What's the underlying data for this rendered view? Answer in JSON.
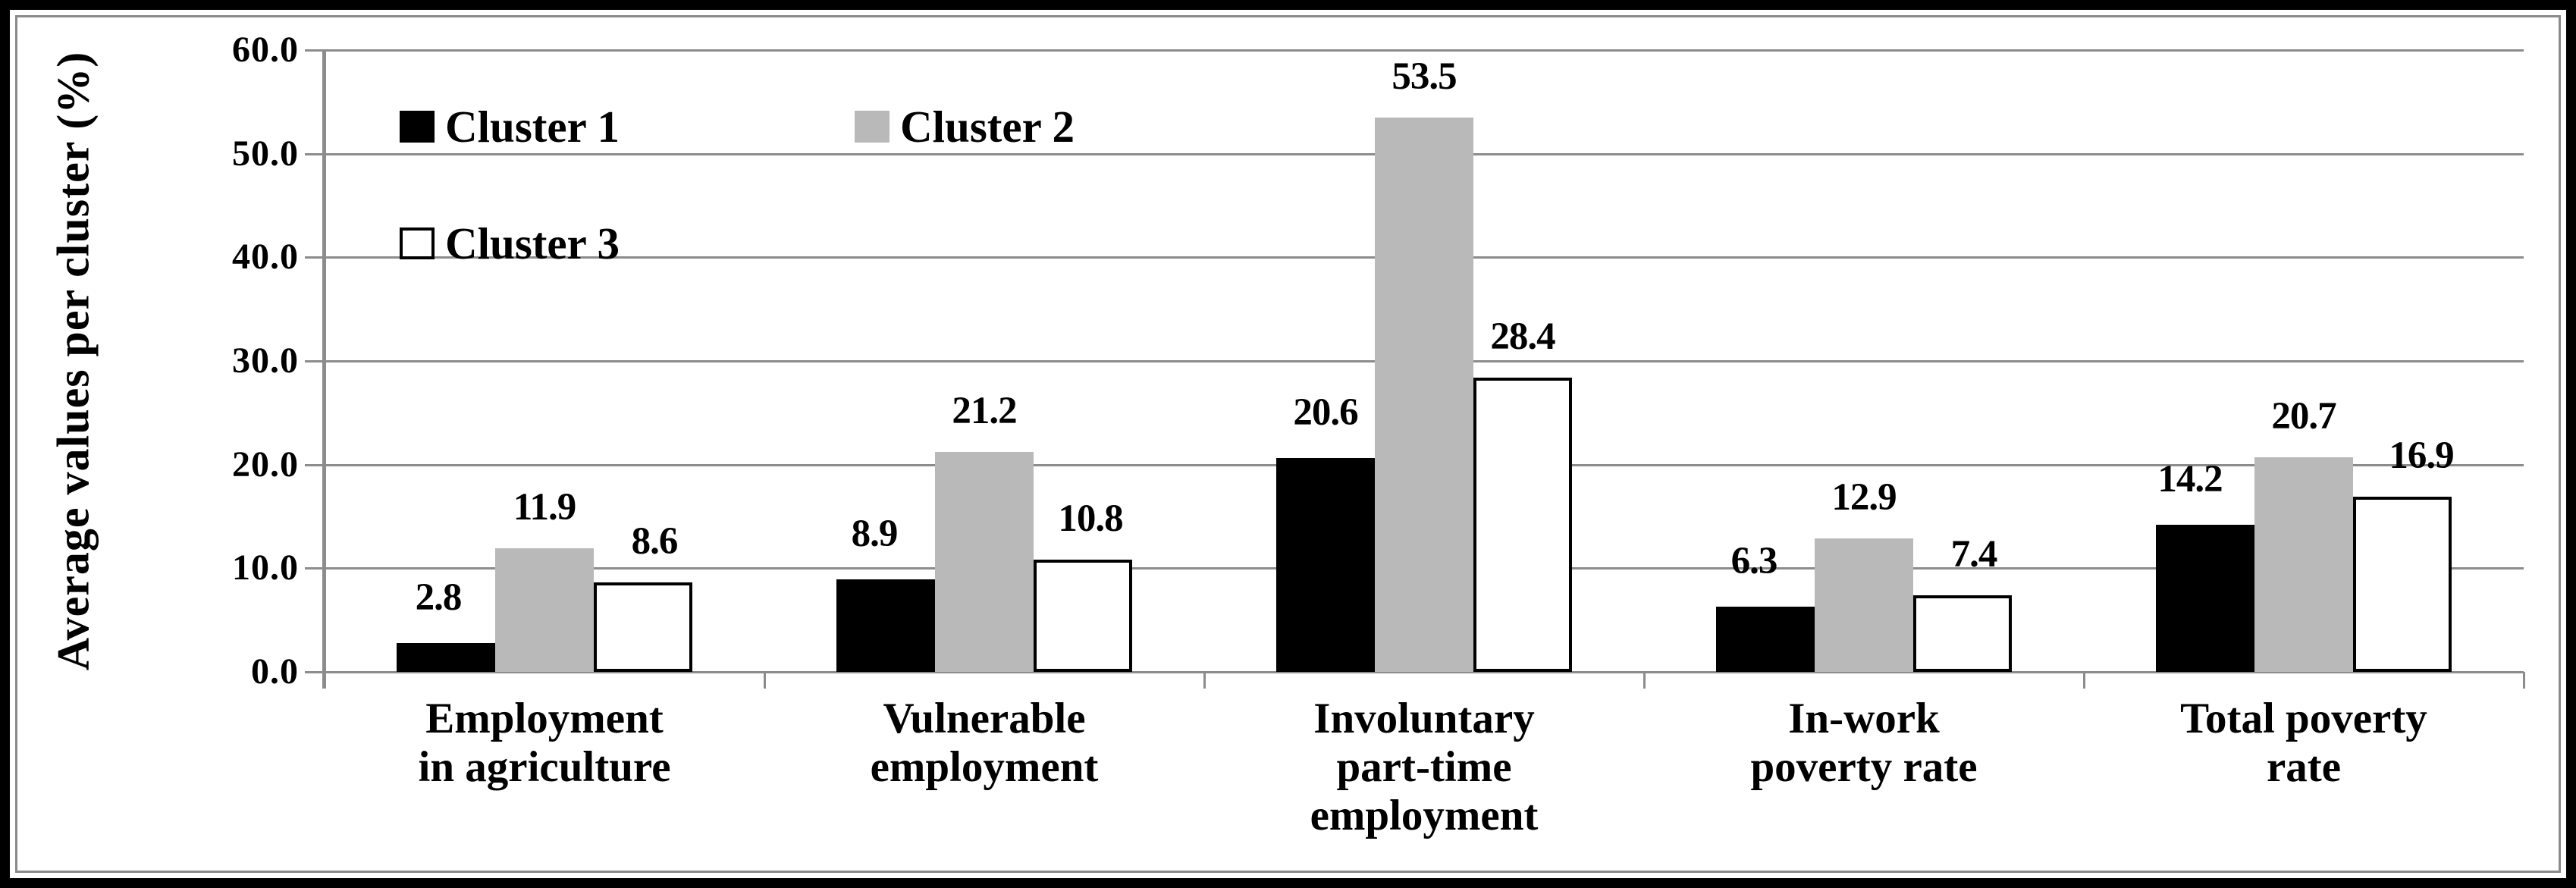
{
  "figure": {
    "background": "#ffffff",
    "frame_outer_color": "#000000",
    "frame_inner_color": "#8a8a8a"
  },
  "chart_data": {
    "type": "bar",
    "title": "",
    "xlabel": "",
    "ylabel": "Average values per cluster (%)",
    "ylim": [
      0,
      60
    ],
    "ytick_step": 10,
    "ytick_labels": [
      "0.0",
      "10.0",
      "20.0",
      "30.0",
      "40.0",
      "50.0",
      "60.0"
    ],
    "grid": true,
    "gridline_color": "#8c8c8c",
    "axis_color": "#8c8c8c",
    "legend_position": "inside-top-left",
    "categories": [
      "Employment in agriculture",
      "Vulnerable employment",
      "Involuntary part-time employment",
      "In-work poverty rate",
      "Total poverty rate"
    ],
    "category_label_lines": [
      [
        "Employment",
        "in agriculture"
      ],
      [
        "Vulnerable",
        "employment"
      ],
      [
        "Involuntary",
        "part-time",
        "employment"
      ],
      [
        "In-work",
        "poverty rate"
      ],
      [
        "Total poverty",
        "rate"
      ]
    ],
    "series": [
      {
        "name": "Cluster 1",
        "color": "#000000",
        "border": null,
        "values": [
          2.8,
          8.9,
          20.6,
          6.3,
          14.2
        ]
      },
      {
        "name": "Cluster 2",
        "color": "#b9b9b9",
        "border": null,
        "values": [
          11.9,
          21.2,
          53.5,
          12.9,
          20.7
        ]
      },
      {
        "name": "Cluster 3",
        "color": "#ffffff",
        "border": "#000000",
        "values": [
          8.6,
          10.8,
          28.4,
          7.4,
          16.9
        ]
      }
    ],
    "value_label_decimals": 1,
    "value_label_color": "#000000"
  }
}
